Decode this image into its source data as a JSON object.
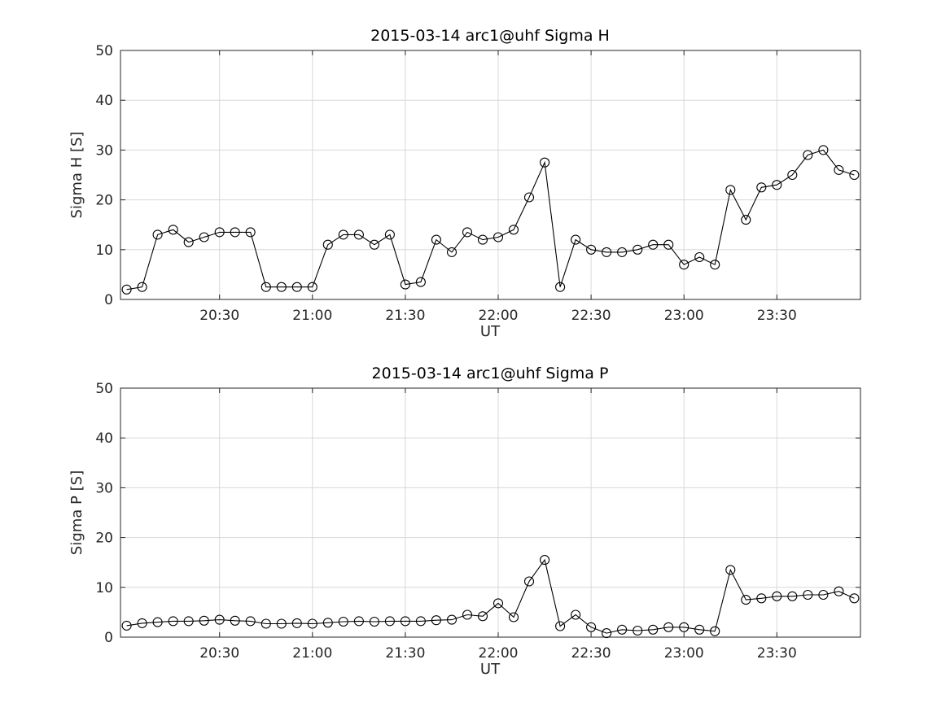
{
  "figure": {
    "background_color": "#ffffff",
    "text_color": "#262626",
    "line_color": "#000000",
    "grid_color": "#d8d8d8"
  },
  "chart_data": [
    {
      "type": "line",
      "title": "2015-03-14  arc1@uhf Sigma H",
      "xlabel": "UT",
      "ylabel": "Sigma H [S]",
      "ylim": [
        0,
        50
      ],
      "yticks": [
        0,
        10,
        20,
        30,
        40,
        50
      ],
      "xlim": [
        "19:58",
        "23:57"
      ],
      "xticks": [
        "20:30",
        "21:00",
        "21:30",
        "22:00",
        "22:30",
        "23:00",
        "23:30"
      ],
      "grid": true,
      "marker": "o",
      "legend": null,
      "x": [
        "20:00",
        "20:05",
        "20:10",
        "20:15",
        "20:20",
        "20:25",
        "20:30",
        "20:35",
        "20:40",
        "20:45",
        "20:50",
        "20:55",
        "21:00",
        "21:05",
        "21:10",
        "21:15",
        "21:20",
        "21:25",
        "21:30",
        "21:35",
        "21:40",
        "21:45",
        "21:50",
        "21:55",
        "22:00",
        "22:05",
        "22:10",
        "22:15",
        "22:20",
        "22:25",
        "22:30",
        "22:35",
        "22:40",
        "22:45",
        "22:50",
        "22:55",
        "23:00",
        "23:05",
        "23:10",
        "23:15",
        "23:20",
        "23:25",
        "23:30",
        "23:35",
        "23:40",
        "23:45",
        "23:50",
        "23:55"
      ],
      "y": [
        2,
        2.5,
        13,
        14,
        11.5,
        12.5,
        13.5,
        13.5,
        13.5,
        2.5,
        2.5,
        2.5,
        2.5,
        11,
        13,
        13,
        11,
        13,
        3,
        3.5,
        12,
        9.5,
        13.5,
        12,
        12.5,
        14,
        20.5,
        27.5,
        2.5,
        12,
        10,
        9.5,
        9.5,
        10,
        11,
        11,
        7,
        8.5,
        7,
        22,
        16,
        22.5,
        23,
        25,
        29,
        30,
        26,
        25
      ]
    },
    {
      "type": "line",
      "title": "2015-03-14  arc1@uhf Sigma P",
      "xlabel": "UT",
      "ylabel": "Sigma P [S]",
      "ylim": [
        0,
        50
      ],
      "yticks": [
        0,
        10,
        20,
        30,
        40,
        50
      ],
      "xlim": [
        "19:58",
        "23:57"
      ],
      "xticks": [
        "20:30",
        "21:00",
        "21:30",
        "22:00",
        "22:30",
        "23:00",
        "23:30"
      ],
      "grid": true,
      "marker": "o",
      "legend": null,
      "x": [
        "20:00",
        "20:05",
        "20:10",
        "20:15",
        "20:20",
        "20:25",
        "20:30",
        "20:35",
        "20:40",
        "20:45",
        "20:50",
        "20:55",
        "21:00",
        "21:05",
        "21:10",
        "21:15",
        "21:20",
        "21:25",
        "21:30",
        "21:35",
        "21:40",
        "21:45",
        "21:50",
        "21:55",
        "22:00",
        "22:05",
        "22:10",
        "22:15",
        "22:20",
        "22:25",
        "22:30",
        "22:35",
        "22:40",
        "22:45",
        "22:50",
        "22:55",
        "23:00",
        "23:05",
        "23:10",
        "23:15",
        "23:20",
        "23:25",
        "23:30",
        "23:35",
        "23:40",
        "23:45",
        "23:50",
        "23:55"
      ],
      "y": [
        2.3,
        2.8,
        3,
        3.2,
        3.2,
        3.3,
        3.5,
        3.3,
        3.2,
        2.7,
        2.7,
        2.8,
        2.7,
        2.9,
        3.1,
        3.2,
        3.1,
        3.2,
        3.2,
        3.2,
        3.4,
        3.5,
        4.5,
        4.2,
        6.8,
        4,
        11.2,
        15.5,
        2.2,
        4.5,
        2,
        0.8,
        1.5,
        1.3,
        1.5,
        2,
        2,
        1.5,
        1.2,
        13.5,
        7.5,
        7.8,
        8.2,
        8.2,
        8.5,
        8.5,
        9.2,
        7.8
      ]
    }
  ]
}
